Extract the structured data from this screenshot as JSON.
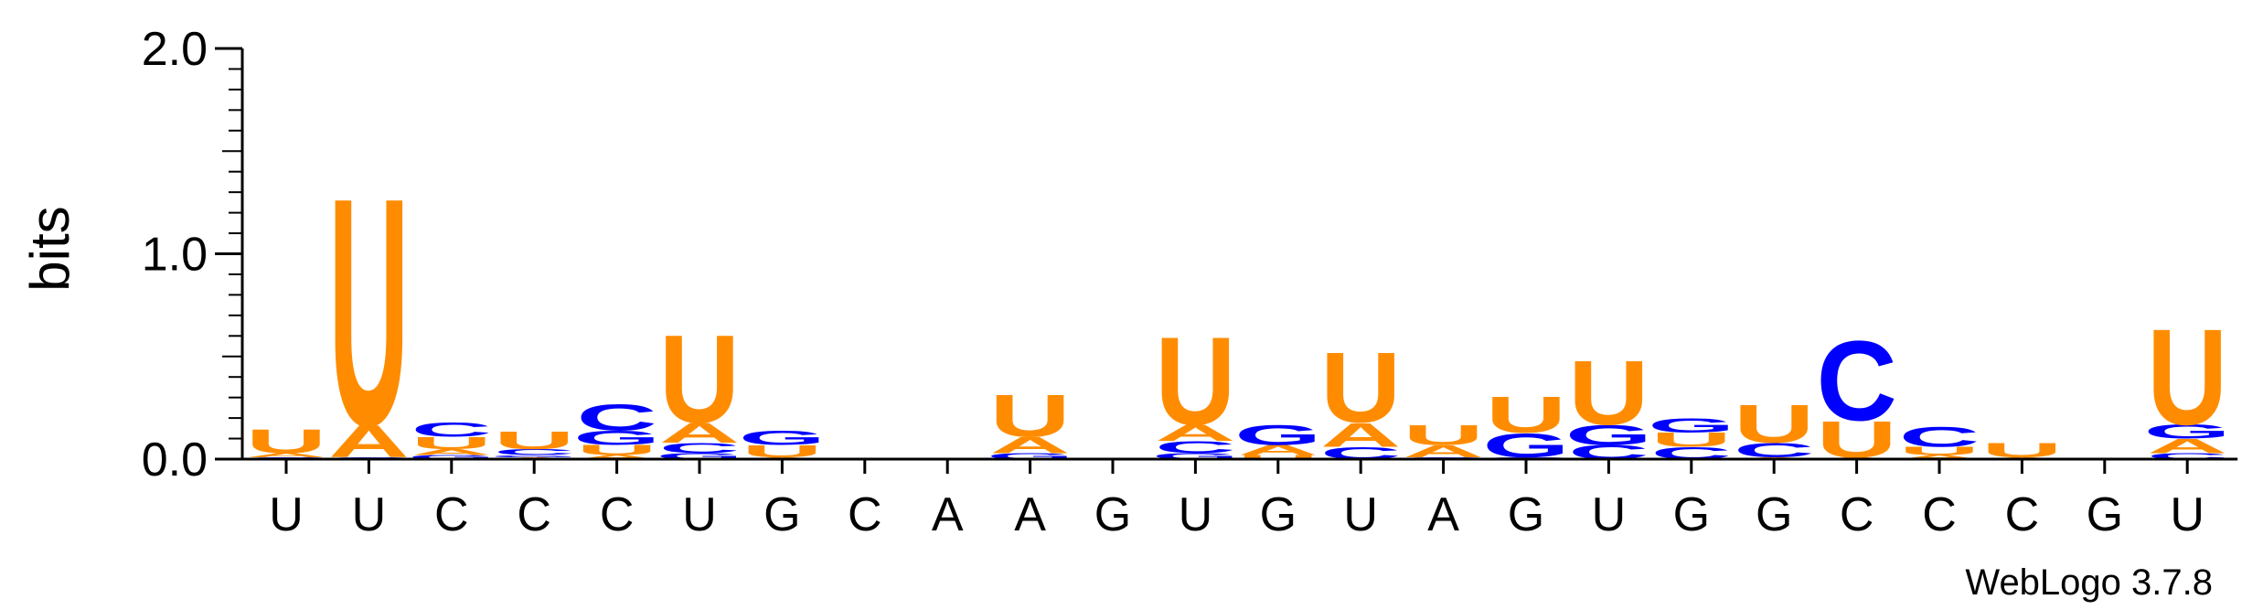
{
  "chart_data": {
    "type": "sequence-logo",
    "ylabel": "bits",
    "ylim": [
      0,
      2.0
    ],
    "yticks": [
      "0.0",
      "1.0",
      "2.0"
    ],
    "credit": "WebLogo 3.7.8",
    "colors": {
      "A": "#ff8c00",
      "U": "#ff8c00",
      "C": "#0000ff",
      "G": "#0000ff"
    },
    "positions": [
      {
        "label": "U",
        "stack": [
          {
            "letter": "C",
            "bits": 0.01
          },
          {
            "letter": "A",
            "bits": 0.02
          },
          {
            "letter": "U",
            "bits": 0.12
          }
        ]
      },
      {
        "label": "U",
        "stack": [
          {
            "letter": "C",
            "bits": 0.01
          },
          {
            "letter": "A",
            "bits": 0.16
          },
          {
            "letter": "U",
            "bits": 1.14
          }
        ]
      },
      {
        "label": "C",
        "stack": [
          {
            "letter": "G",
            "bits": 0.02
          },
          {
            "letter": "A",
            "bits": 0.03
          },
          {
            "letter": "U",
            "bits": 0.06
          },
          {
            "letter": "C",
            "bits": 0.07
          }
        ]
      },
      {
        "label": "C",
        "stack": [
          {
            "letter": "A",
            "bits": 0.01
          },
          {
            "letter": "G",
            "bits": 0.01
          },
          {
            "letter": "C",
            "bits": 0.03
          },
          {
            "letter": "U",
            "bits": 0.09
          }
        ]
      },
      {
        "label": "C",
        "stack": [
          {
            "letter": "A",
            "bits": 0.02
          },
          {
            "letter": "U",
            "bits": 0.05
          },
          {
            "letter": "G",
            "bits": 0.07
          },
          {
            "letter": "C",
            "bits": 0.13
          }
        ]
      },
      {
        "label": "U",
        "stack": [
          {
            "letter": "G",
            "bits": 0.03
          },
          {
            "letter": "C",
            "bits": 0.05
          },
          {
            "letter": "A",
            "bits": 0.1
          },
          {
            "letter": "U",
            "bits": 0.44
          }
        ]
      },
      {
        "label": "G",
        "stack": [
          {
            "letter": "A",
            "bits": 0.01
          },
          {
            "letter": "U",
            "bits": 0.06
          },
          {
            "letter": "G",
            "bits": 0.07
          }
        ]
      },
      {
        "label": "C",
        "stack": [
          {
            "letter": "C",
            "bits": 0.005
          }
        ]
      },
      {
        "label": "A",
        "stack": [
          {
            "letter": "A",
            "bits": 0.005
          }
        ]
      },
      {
        "label": "A",
        "stack": [
          {
            "letter": "G",
            "bits": 0.03
          },
          {
            "letter": "A",
            "bits": 0.08
          },
          {
            "letter": "U",
            "bits": 0.21
          }
        ]
      },
      {
        "label": "G",
        "stack": [
          {
            "letter": "G",
            "bits": 0.005
          }
        ]
      },
      {
        "label": "U",
        "stack": [
          {
            "letter": "G",
            "bits": 0.03
          },
          {
            "letter": "C",
            "bits": 0.06
          },
          {
            "letter": "A",
            "bits": 0.08
          },
          {
            "letter": "U",
            "bits": 0.44
          }
        ]
      },
      {
        "label": "G",
        "stack": [
          {
            "letter": "U",
            "bits": 0.02
          },
          {
            "letter": "A",
            "bits": 0.05
          },
          {
            "letter": "G",
            "bits": 0.1
          }
        ]
      },
      {
        "label": "U",
        "stack": [
          {
            "letter": "C",
            "bits": 0.06
          },
          {
            "letter": "A",
            "bits": 0.12
          },
          {
            "letter": "U",
            "bits": 0.35
          }
        ]
      },
      {
        "label": "A",
        "stack": [
          {
            "letter": "C",
            "bits": 0.01
          },
          {
            "letter": "A",
            "bits": 0.06
          },
          {
            "letter": "U",
            "bits": 0.1
          }
        ]
      },
      {
        "label": "G",
        "stack": [
          {
            "letter": "C",
            "bits": 0.01
          },
          {
            "letter": "G",
            "bits": 0.12
          },
          {
            "letter": "U",
            "bits": 0.18
          }
        ]
      },
      {
        "label": "U",
        "stack": [
          {
            "letter": "C",
            "bits": 0.07
          },
          {
            "letter": "G",
            "bits": 0.1
          },
          {
            "letter": "U",
            "bits": 0.32
          }
        ]
      },
      {
        "label": "G",
        "stack": [
          {
            "letter": "C",
            "bits": 0.06
          },
          {
            "letter": "U",
            "bits": 0.07
          },
          {
            "letter": "G",
            "bits": 0.07
          }
        ]
      },
      {
        "label": "G",
        "stack": [
          {
            "letter": "A",
            "bits": 0.01
          },
          {
            "letter": "C",
            "bits": 0.07
          },
          {
            "letter": "U",
            "bits": 0.19
          }
        ]
      },
      {
        "label": "C",
        "stack": [
          {
            "letter": "A",
            "bits": 0.01
          },
          {
            "letter": "U",
            "bits": 0.18
          },
          {
            "letter": "C",
            "bits": 0.4
          }
        ]
      },
      {
        "label": "C",
        "stack": [
          {
            "letter": "A",
            "bits": 0.02
          },
          {
            "letter": "U",
            "bits": 0.04
          },
          {
            "letter": "C",
            "bits": 0.1
          }
        ]
      },
      {
        "label": "C",
        "stack": [
          {
            "letter": "A",
            "bits": 0.01
          },
          {
            "letter": "U",
            "bits": 0.07
          }
        ]
      },
      {
        "label": "G",
        "stack": [
          {
            "letter": "G",
            "bits": 0.005
          }
        ]
      },
      {
        "label": "U",
        "stack": [
          {
            "letter": "C",
            "bits": 0.03
          },
          {
            "letter": "A",
            "bits": 0.07
          },
          {
            "letter": "G",
            "bits": 0.07
          },
          {
            "letter": "U",
            "bits": 0.48
          }
        ]
      }
    ]
  }
}
